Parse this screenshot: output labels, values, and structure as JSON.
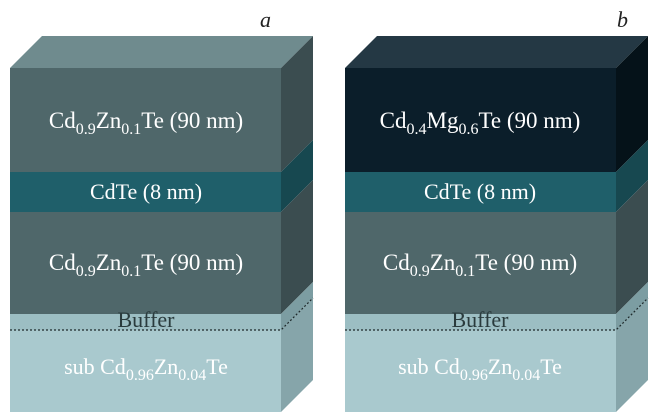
{
  "colors": {
    "cdzn_front": "#4f676a",
    "cdzn_top": "#6f8b8e",
    "cdzn_side": "#3b4d50",
    "cdte_front": "#1f5f6a",
    "cdte_side": "#174850",
    "cdmg_front": "#0b1e2a",
    "cdmg_top": "#243844",
    "cdmg_side": "#051219",
    "buffer_front": "#9cbec3",
    "buffer_side": "#7c9da2",
    "sub_front": "#a9c9ce",
    "sub_side": "#86a5aa",
    "text_light": "#ffffff",
    "text_dark": "#1e2a2c"
  },
  "stacks": [
    {
      "letter": "a",
      "layers": {
        "top": {
          "main": "Cd",
          "s1": "0.9",
          "m2": "Zn",
          "s2": "0.1",
          "tail": "Te (90 nm)"
        },
        "well": {
          "label": "CdTe (8 nm)"
        },
        "bottom": {
          "main": "Cd",
          "s1": "0.9",
          "m2": "Zn",
          "s2": "0.1",
          "tail": "Te (90 nm)"
        },
        "buffer": {
          "label": "Buffer"
        },
        "substrate": {
          "pre": "sub Cd",
          "s1": "0.96",
          "m2": "Zn",
          "s2": "0.04",
          "tail": "Te"
        }
      }
    },
    {
      "letter": "b",
      "layers": {
        "top": {
          "main": "Cd",
          "s1": "0.4",
          "m2": "Mg",
          "s2": "0.6",
          "tail": "Te (90 nm)"
        },
        "well": {
          "label": "CdTe (8 nm)"
        },
        "bottom": {
          "main": "Cd",
          "s1": "0.9",
          "m2": "Zn",
          "s2": "0.1",
          "tail": "Te (90 nm)"
        },
        "buffer": {
          "label": "Buffer"
        },
        "substrate": {
          "pre": "sub Cd",
          "s1": "0.96",
          "m2": "Zn",
          "s2": "0.04",
          "tail": "Te"
        }
      }
    }
  ]
}
